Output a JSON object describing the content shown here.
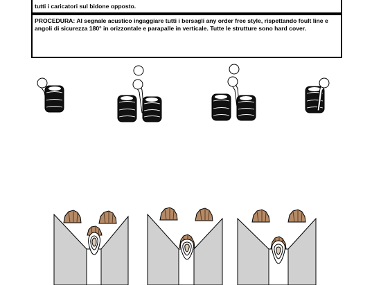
{
  "notes": {
    "top_line": "tutti i caricatori sul bidone opposto.",
    "procedure_label": "PROCEDURA:",
    "procedure_text": "Al segnale acustico ingaggiare tutti i bersagli any order free style, rispettando foult line e angoli di sicurezza 180°  in orizzontale e parapalle in verticale. Tutte le strutture sono hard cover."
  },
  "colors": {
    "ink": "#000000",
    "tire": "#111111",
    "tire_highlight": "#ffffff",
    "wall": "#d0d0d0",
    "target_tan": "#b58a66",
    "popper_fill": "#d9c9b6"
  },
  "diagram": {
    "tire_stacks": 4,
    "barricades": 3,
    "icons": [
      "steel-plate-icon",
      "tire-icon",
      "paper-target-icon",
      "popper-icon",
      "barricade-wall-icon"
    ]
  }
}
